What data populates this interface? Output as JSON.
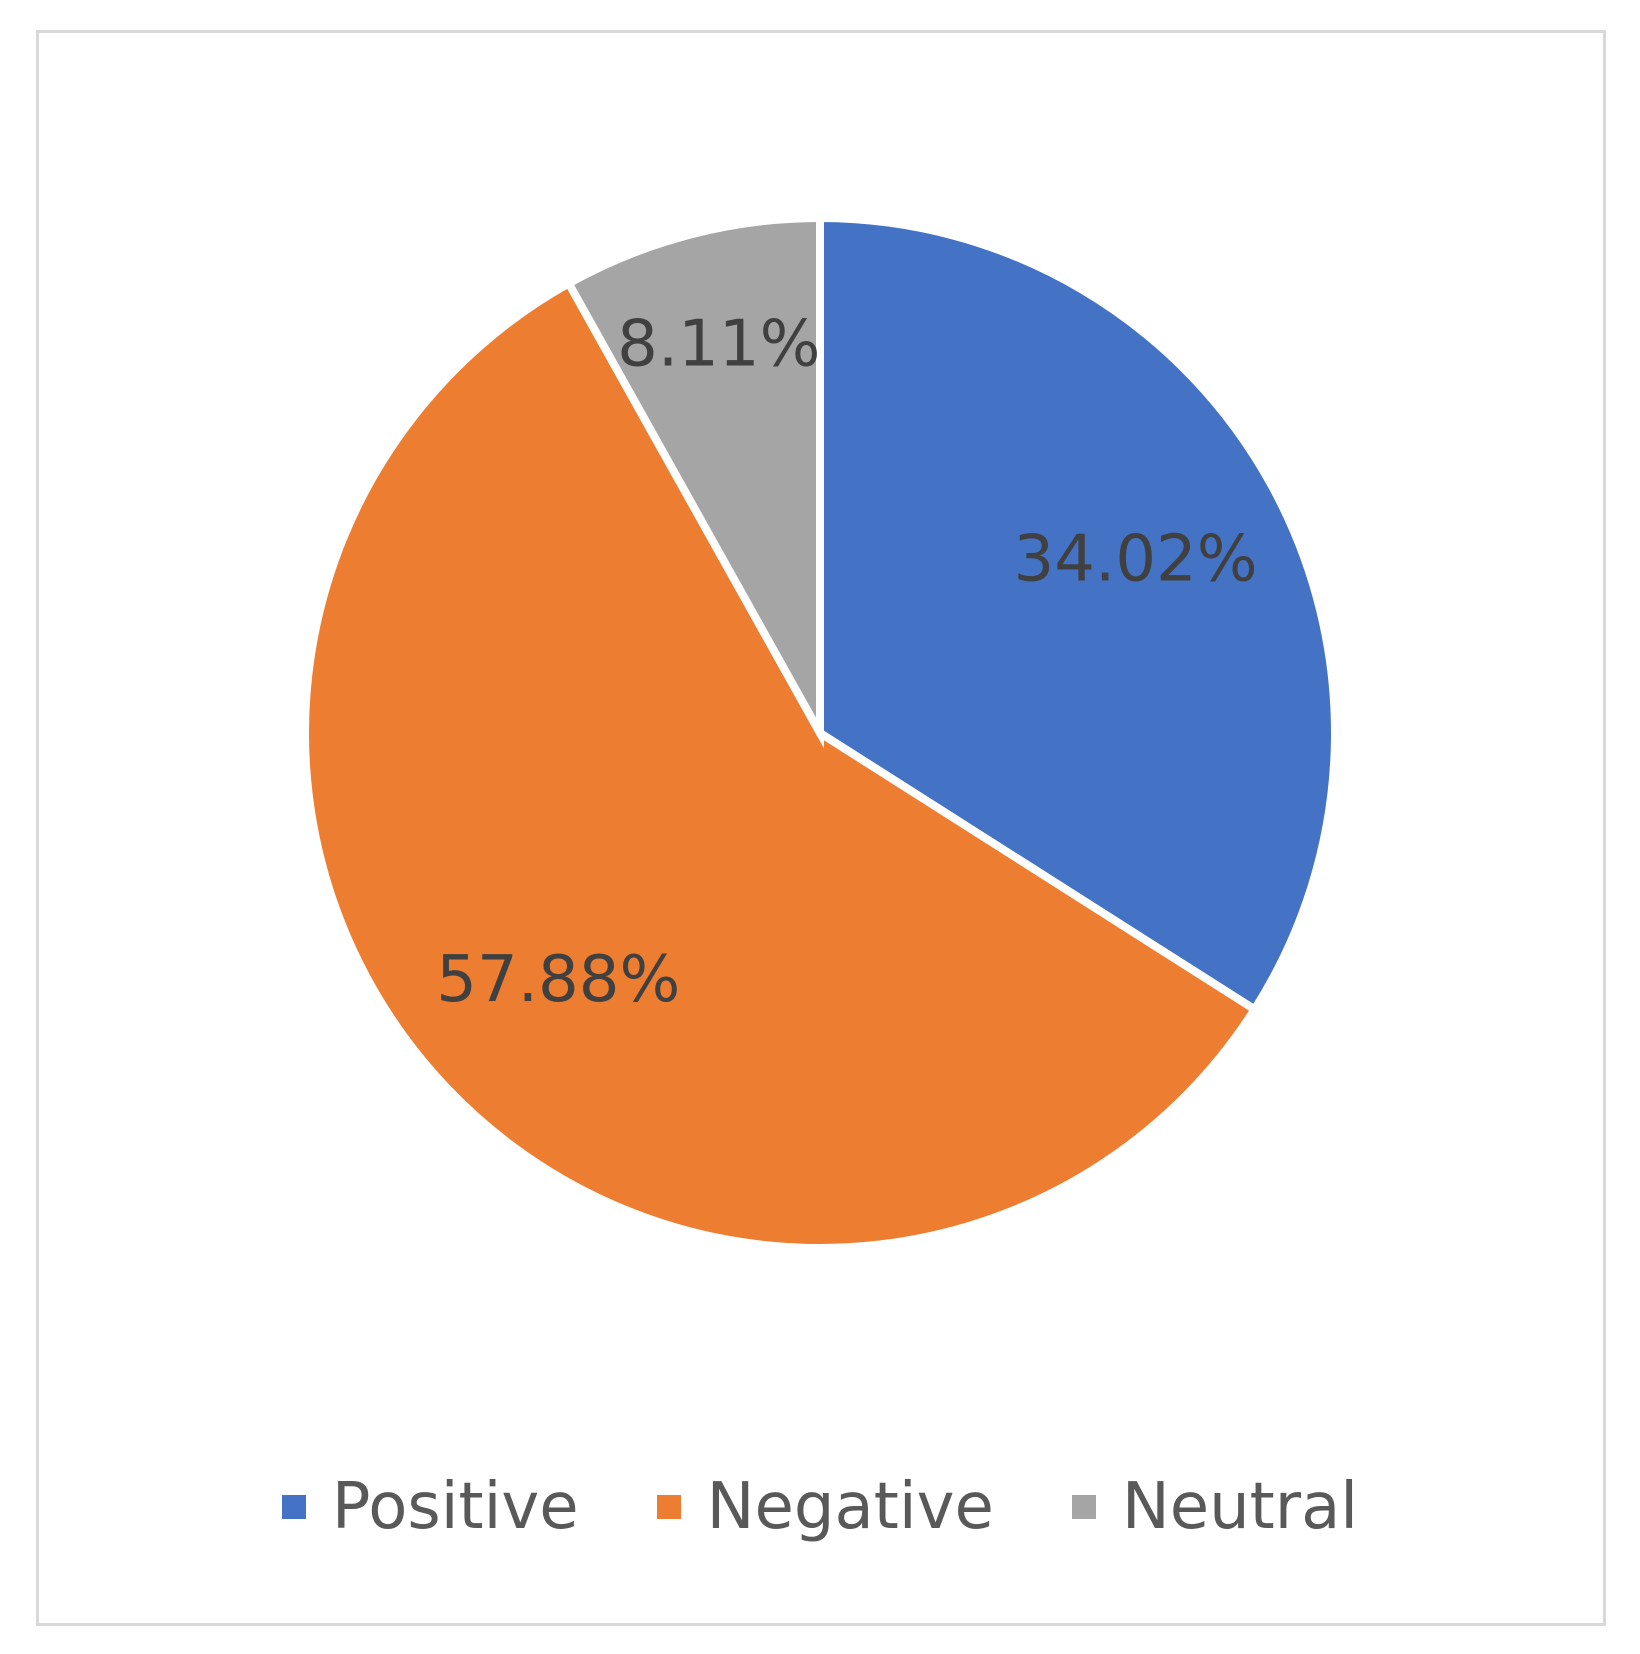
{
  "chart_data": {
    "type": "pie",
    "title": "",
    "slices": [
      {
        "label": "Positive",
        "value": 34.02,
        "display": "34.02%",
        "color": "#4472C4"
      },
      {
        "label": "Negative",
        "value": 57.88,
        "display": "57.88%",
        "color": "#ED7D31"
      },
      {
        "label": "Neutral",
        "value": 8.11,
        "display": "8.11%",
        "color": "#A5A5A5"
      }
    ],
    "legend_position": "bottom",
    "start_angle_deg": 0,
    "direction": "clockwise"
  },
  "legend": {
    "items": [
      {
        "label": "Positive",
        "color": "#4472C4"
      },
      {
        "label": "Negative",
        "color": "#ED7D31"
      },
      {
        "label": "Neutral",
        "color": "#A5A5A5"
      }
    ]
  }
}
